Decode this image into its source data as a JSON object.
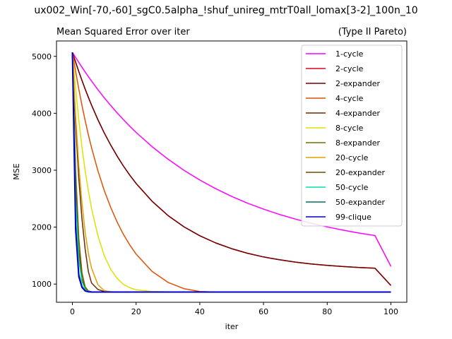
{
  "suptitle": "ux002_Win[-70,-60]_sgC0.5alpha_!shuf_unireg_mtrT0all_lomax[3-2]_100n_10",
  "chart_data": {
    "type": "line",
    "title": "Mean Squared Error over iter",
    "subtitle": "(Type II Pareto)",
    "xlabel": "iter",
    "ylabel": "MSE",
    "xlim": [
      -5,
      105
    ],
    "ylim": [
      680,
      5270
    ],
    "xticks": [
      0,
      20,
      40,
      60,
      80,
      100
    ],
    "yticks": [
      1000,
      2000,
      3000,
      4000,
      5000
    ],
    "legend_position": "upper right",
    "grid": false,
    "x": [
      0,
      1,
      2,
      3,
      4,
      5,
      6,
      8,
      10,
      12,
      14,
      16,
      18,
      20,
      25,
      30,
      35,
      40,
      45,
      50,
      55,
      60,
      65,
      70,
      75,
      80,
      85,
      90,
      95,
      100
    ],
    "series": [
      {
        "name": "1-cycle",
        "color": "#ff00ff",
        "values": [
          5070,
          4980,
          4893,
          4808,
          4725,
          4644,
          4566,
          4415,
          4272,
          4137,
          4009,
          3888,
          3773,
          3664,
          3414,
          3194,
          2999,
          2827,
          2675,
          2540,
          2421,
          2316,
          2223,
          2141,
          2068,
          2004,
          1947,
          1896,
          1852,
          1312
        ]
      },
      {
        "name": "2-cycle",
        "color": "#e0001e",
        "values": [
          5070,
          4897,
          4732,
          4575,
          4424,
          4281,
          4144,
          3888,
          3655,
          3443,
          3250,
          3074,
          2914,
          2768,
          2455,
          2205,
          2006,
          1848,
          1722,
          1621,
          1541,
          1477,
          1427,
          1386,
          1354,
          1328,
          1308,
          1292,
          1279,
          975
        ]
      },
      {
        "name": "2-expander",
        "color": "#700000",
        "values": [
          5070,
          4897,
          4732,
          4575,
          4424,
          4281,
          4144,
          3888,
          3655,
          3443,
          3250,
          3074,
          2914,
          2768,
          2455,
          2205,
          2006,
          1848,
          1722,
          1621,
          1541,
          1477,
          1427,
          1386,
          1354,
          1328,
          1308,
          1292,
          1279,
          975
        ]
      },
      {
        "name": "4-cycle",
        "color": "#e05000",
        "values": [
          5070,
          4735,
          4424,
          4136,
          3869,
          3623,
          3395,
          2991,
          2645,
          2348,
          2093,
          1874,
          1687,
          1526,
          1222,
          1030,
          920,
          870,
          860,
          860,
          860,
          860,
          860,
          860,
          860,
          860,
          860,
          860,
          860,
          860
        ]
      },
      {
        "name": "4-expander",
        "color": "#6e2a00",
        "values": [
          5070,
          3800,
          2850,
          2140,
          1610,
          1220,
          1020,
          905,
          870,
          862,
          860,
          860,
          860,
          860,
          860,
          860,
          860,
          860,
          860,
          860,
          860,
          860,
          860,
          860,
          860,
          860,
          860,
          860,
          860,
          860
        ]
      },
      {
        "name": "8-cycle",
        "color": "#e0e000",
        "values": [
          5070,
          4430,
          3880,
          3400,
          2990,
          2640,
          2330,
          1850,
          1500,
          1260,
          1100,
          995,
          935,
          900,
          870,
          862,
          860,
          860,
          860,
          860,
          860,
          860,
          860,
          860,
          860,
          860,
          860,
          860,
          860,
          860
        ]
      },
      {
        "name": "8-expander",
        "color": "#707000",
        "values": [
          5070,
          3000,
          1800,
          1200,
          950,
          880,
          865,
          860,
          860,
          860,
          860,
          860,
          860,
          860,
          860,
          860,
          860,
          860,
          860,
          860,
          860,
          860,
          860,
          860,
          860,
          860,
          860,
          860,
          860,
          860
        ]
      },
      {
        "name": "20-cycle",
        "color": "#e0a000",
        "values": [
          5070,
          3950,
          3080,
          2420,
          1910,
          1540,
          1280,
          990,
          885,
          866,
          861,
          860,
          860,
          860,
          860,
          860,
          860,
          860,
          860,
          860,
          860,
          860,
          860,
          860,
          860,
          860,
          860,
          860,
          860,
          860
        ]
      },
      {
        "name": "20-expander",
        "color": "#704800",
        "values": [
          5070,
          2800,
          1600,
          1100,
          920,
          872,
          862,
          860,
          860,
          860,
          860,
          860,
          860,
          860,
          860,
          860,
          860,
          860,
          860,
          860,
          860,
          860,
          860,
          860,
          860,
          860,
          860,
          860,
          860,
          860
        ]
      },
      {
        "name": "50-cycle",
        "color": "#00e0b0",
        "values": [
          5070,
          2500,
          1420,
          1040,
          905,
          868,
          861,
          860,
          860,
          860,
          860,
          860,
          860,
          860,
          860,
          860,
          860,
          860,
          860,
          860,
          860,
          860,
          860,
          860,
          860,
          860,
          860,
          860,
          860,
          860
        ]
      },
      {
        "name": "50-expander",
        "color": "#00705a",
        "values": [
          5070,
          2100,
          1180,
          960,
          885,
          865,
          860,
          860,
          860,
          860,
          860,
          860,
          860,
          860,
          860,
          860,
          860,
          860,
          860,
          860,
          860,
          860,
          860,
          860,
          860,
          860,
          860,
          860,
          860,
          860
        ]
      },
      {
        "name": "99-clique",
        "color": "#0000c8",
        "values": [
          5070,
          1950,
          1130,
          940,
          880,
          863,
          860,
          860,
          860,
          860,
          860,
          860,
          860,
          860,
          860,
          860,
          860,
          860,
          860,
          860,
          860,
          860,
          860,
          860,
          860,
          860,
          860,
          860,
          860,
          860
        ]
      }
    ]
  }
}
